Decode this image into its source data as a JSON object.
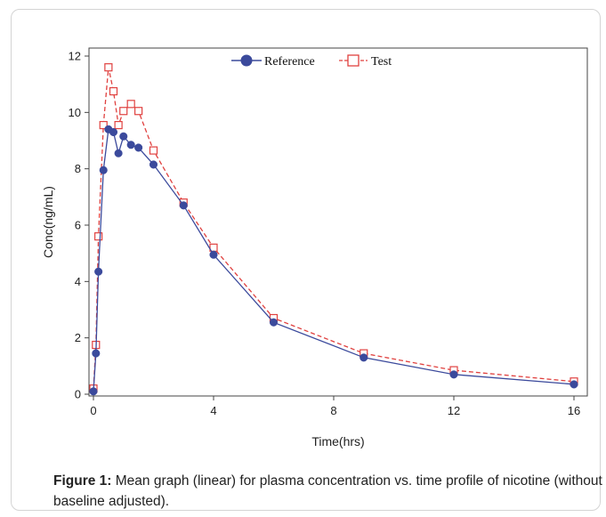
{
  "caption": {
    "label": "Figure 1:",
    "text": " Mean graph (linear) for plasma concentration vs. time profile of nicotine (without baseline adjusted)."
  },
  "chart_data": {
    "type": "line",
    "xlabel": "Time(hrs)",
    "ylabel": "Conc(ng/mL)",
    "xlim": [
      0,
      16
    ],
    "ylim": [
      0,
      12
    ],
    "xticks": [
      0,
      4,
      8,
      12,
      16
    ],
    "yticks": [
      0,
      2,
      4,
      6,
      8,
      10,
      12
    ],
    "grid": false,
    "legend_position": "top",
    "series": [
      {
        "name": "Reference",
        "color": "#3b4a9c",
        "marker": "filled-circle",
        "line_style": "solid",
        "x": [
          0,
          0.083,
          0.167,
          0.333,
          0.5,
          0.667,
          0.833,
          1,
          1.25,
          1.5,
          2,
          3,
          4,
          6,
          9,
          12,
          16
        ],
        "y": [
          0.1,
          1.45,
          4.35,
          7.95,
          9.4,
          9.3,
          8.55,
          9.15,
          8.85,
          8.75,
          8.15,
          6.7,
          4.95,
          2.55,
          1.3,
          0.7,
          0.35
        ]
      },
      {
        "name": "Test",
        "color": "#e0413f",
        "marker": "open-square",
        "line_style": "dashed",
        "x": [
          0,
          0.083,
          0.167,
          0.333,
          0.5,
          0.667,
          0.833,
          1,
          1.25,
          1.5,
          2,
          3,
          4,
          6,
          9,
          12,
          16
        ],
        "y": [
          0.2,
          1.75,
          5.6,
          9.55,
          11.6,
          10.75,
          9.55,
          10.05,
          10.3,
          10.05,
          8.65,
          6.8,
          5.2,
          2.7,
          1.45,
          0.85,
          0.45
        ]
      }
    ]
  }
}
